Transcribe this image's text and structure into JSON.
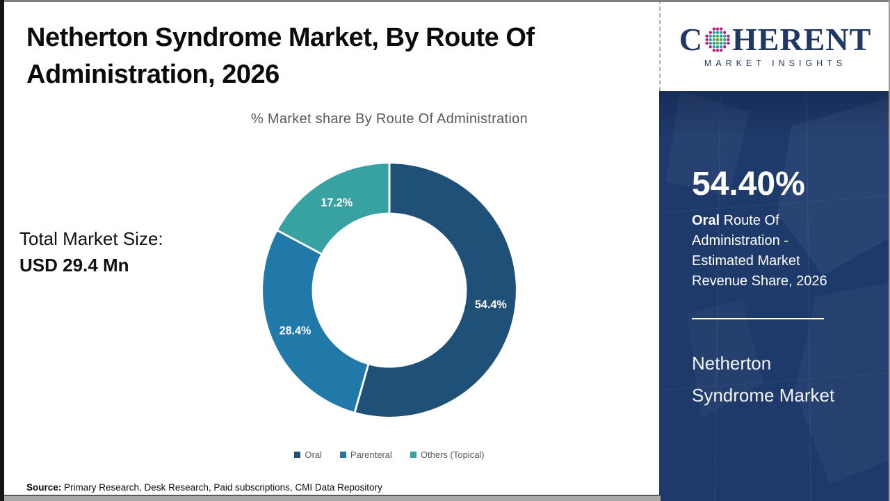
{
  "page": {
    "title": "Netherton Syndrome Market, By Route Of Administration, 2026",
    "title_line1": "Netherton Syndrome Market, By Route Of",
    "title_line2": "Administration, 2026",
    "total_market_label": "Total Market Size:",
    "total_market_value": "USD 29.4 Mn",
    "source_label": "Source:",
    "source_text": "Primary Research, Desk Research, Paid subscriptions, CMI Data Repository"
  },
  "logo": {
    "brand_prefix": "C",
    "brand_suffix": "HERENT",
    "subtitle": "MARKET INSIGHTS",
    "text_color": "#1F3864",
    "globe_colors": {
      "outer": "#C0147E",
      "mid": "#1E9E9E",
      "inner": "#58A83C"
    }
  },
  "chart_data": {
    "type": "pie",
    "subtype": "donut",
    "title": "% Market share By Route Of Administration",
    "categories": [
      "Oral",
      "Parenteral",
      "Others (Topical)"
    ],
    "values": [
      54.4,
      28.4,
      17.2
    ],
    "data_labels": [
      "54.4%",
      "28.4%",
      "17.2%"
    ],
    "colors": [
      "#1F5078",
      "#2079A8",
      "#38A1A1"
    ],
    "start_angle": 0,
    "clockwise": true,
    "inner_radius_ratio": 0.6,
    "legend_position": "bottom",
    "label_color": "#ffffff"
  },
  "sidebar": {
    "bg_color": "#1E3A6B",
    "stat_value": "54.40%",
    "stat_desc_bold": "Oral",
    "stat_desc_rest": "Route Of Administration - Estimated Market Revenue Share, 2026",
    "panel_title_line1": "Netherton",
    "panel_title_line2": "Syndrome Market"
  }
}
